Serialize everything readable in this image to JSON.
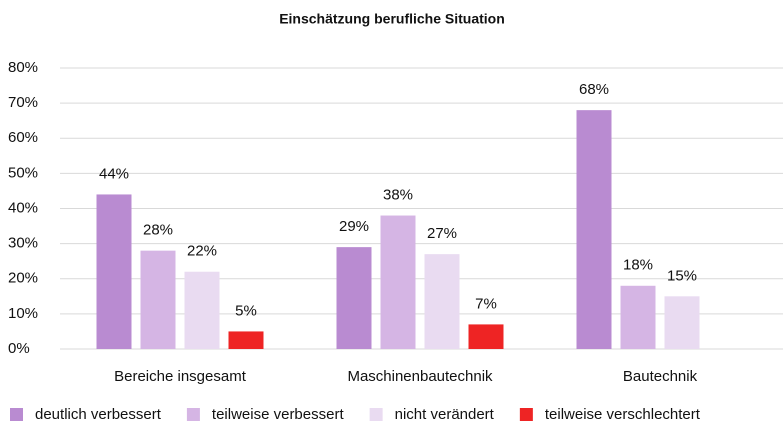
{
  "chart_data": {
    "type": "bar",
    "title": "Einschätzung berufliche Situation",
    "categories": [
      "Bereiche insgesamt",
      "Maschinenbautechnik",
      "Bautechnik"
    ],
    "series": [
      {
        "name": "deutlich verbessert",
        "color": "#b98bd1",
        "values": [
          44,
          29,
          68
        ],
        "value_labels": [
          "44%",
          "29%",
          "68%"
        ]
      },
      {
        "name": "teilweise verbessert",
        "color": "#d5b5e4",
        "values": [
          28,
          38,
          18
        ],
        "value_labels": [
          "28%",
          "38%",
          "18%"
        ]
      },
      {
        "name": "nicht verändert",
        "color": "#e9dbf1",
        "values": [
          22,
          27,
          15
        ],
        "value_labels": [
          "22%",
          "27%",
          "15%"
        ]
      },
      {
        "name": "teilweise verschlechtert",
        "color": "#ee2424",
        "values": [
          5,
          7,
          null
        ],
        "value_labels": [
          "5%",
          "7%",
          null
        ]
      }
    ],
    "ylim": [
      0,
      80
    ],
    "yticks": [
      {
        "value": 0,
        "label": "0%"
      },
      {
        "value": 10,
        "label": "10%"
      },
      {
        "value": 20,
        "label": "20%"
      },
      {
        "value": 30,
        "label": "30%"
      },
      {
        "value": 40,
        "label": "40%"
      },
      {
        "value": 50,
        "label": "50%"
      },
      {
        "value": 60,
        "label": "60%"
      },
      {
        "value": 70,
        "label": "70%"
      },
      {
        "value": 80,
        "label": "80%"
      }
    ],
    "grid": true,
    "legend": "bottom"
  }
}
